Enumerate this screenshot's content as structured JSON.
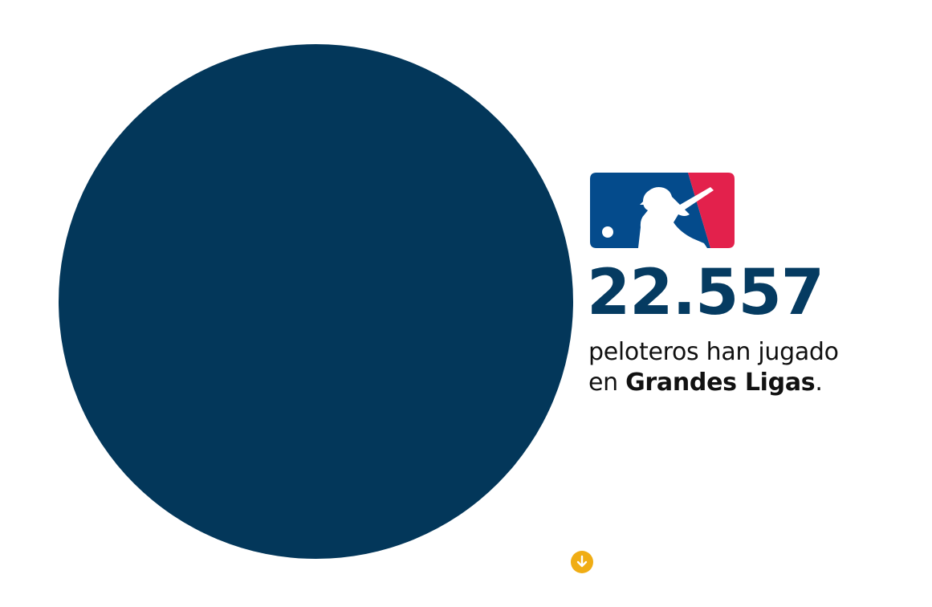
{
  "colors": {
    "circle": "#03375a",
    "stat_text": "#053b61",
    "logo_blue": "#044b8c",
    "logo_red": "#e3214c",
    "scroll_button": "#f0ad14"
  },
  "logo": {
    "name": "MLB logo",
    "icon": "mlb-batter-logo"
  },
  "stat": {
    "value": "22.557"
  },
  "caption": {
    "line1": "peloteros han jugado",
    "line2_prefix": "en ",
    "line2_bold": "Grandes Ligas",
    "line2_suffix": "."
  },
  "scroll": {
    "icon": "arrow-down-icon"
  }
}
